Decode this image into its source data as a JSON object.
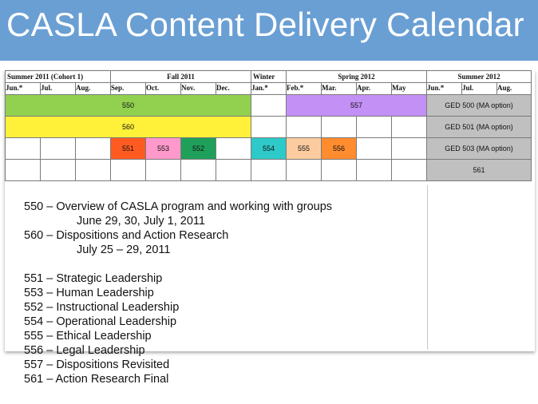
{
  "title": "CASLA Content Delivery Calendar",
  "colors": {
    "title_bg": "#6a9fd4",
    "c550": "#92d050",
    "c557": "#c390f5",
    "c560": "#fff13a",
    "c551": "#ff5b20",
    "c553": "#ff99cc",
    "c552": "#1fa05a",
    "c554": "#2ec9c9",
    "c555": "#fccca0",
    "c556": "#ff8c2e",
    "ged": "#c0c0c0"
  },
  "calendar": {
    "seasons": [
      "Summer 2011 (Cohort 1)",
      "Fall 2011",
      "Winter",
      "Spring 2012",
      "Summer 2012"
    ],
    "months": [
      "Jun.*",
      "Jul.",
      "Aug.",
      "Sep.",
      "Oct.",
      "Nov.",
      "Dec.",
      "Jan.*",
      "Feb.*",
      "Mar.",
      "Apr.",
      "May",
      "Jun.*",
      "Jul.",
      "Aug."
    ],
    "bars": {
      "c550": "550",
      "c557": "557",
      "ged500": "GED 500 (MA option)",
      "c560": "560",
      "ged501": "GED 501 (MA option)",
      "c551": "551",
      "c553": "553",
      "c552": "552",
      "c554": "554",
      "c555": "555",
      "c556": "556",
      "ged503": "GED 503 (MA option)",
      "c561": "561"
    }
  },
  "notes": {
    "n550": "550 – Overview of CASLA program and working with groups",
    "d550": "June 29, 30, July 1, 2011",
    "n560": "560 – Dispositions and Action Research",
    "d560": "July 25 – 29, 2011",
    "n551": "551 – Strategic Leadership",
    "n553": "553 – Human Leadership",
    "n552": "552 – Instructional Leadership",
    "n554": "554 – Operational Leadership",
    "n555": "555 – Ethical Leadership",
    "n556": "556 – Legal Leadership",
    "n557": "557 – Dispositions Revisited",
    "n561": "561 – Action Research Final"
  }
}
